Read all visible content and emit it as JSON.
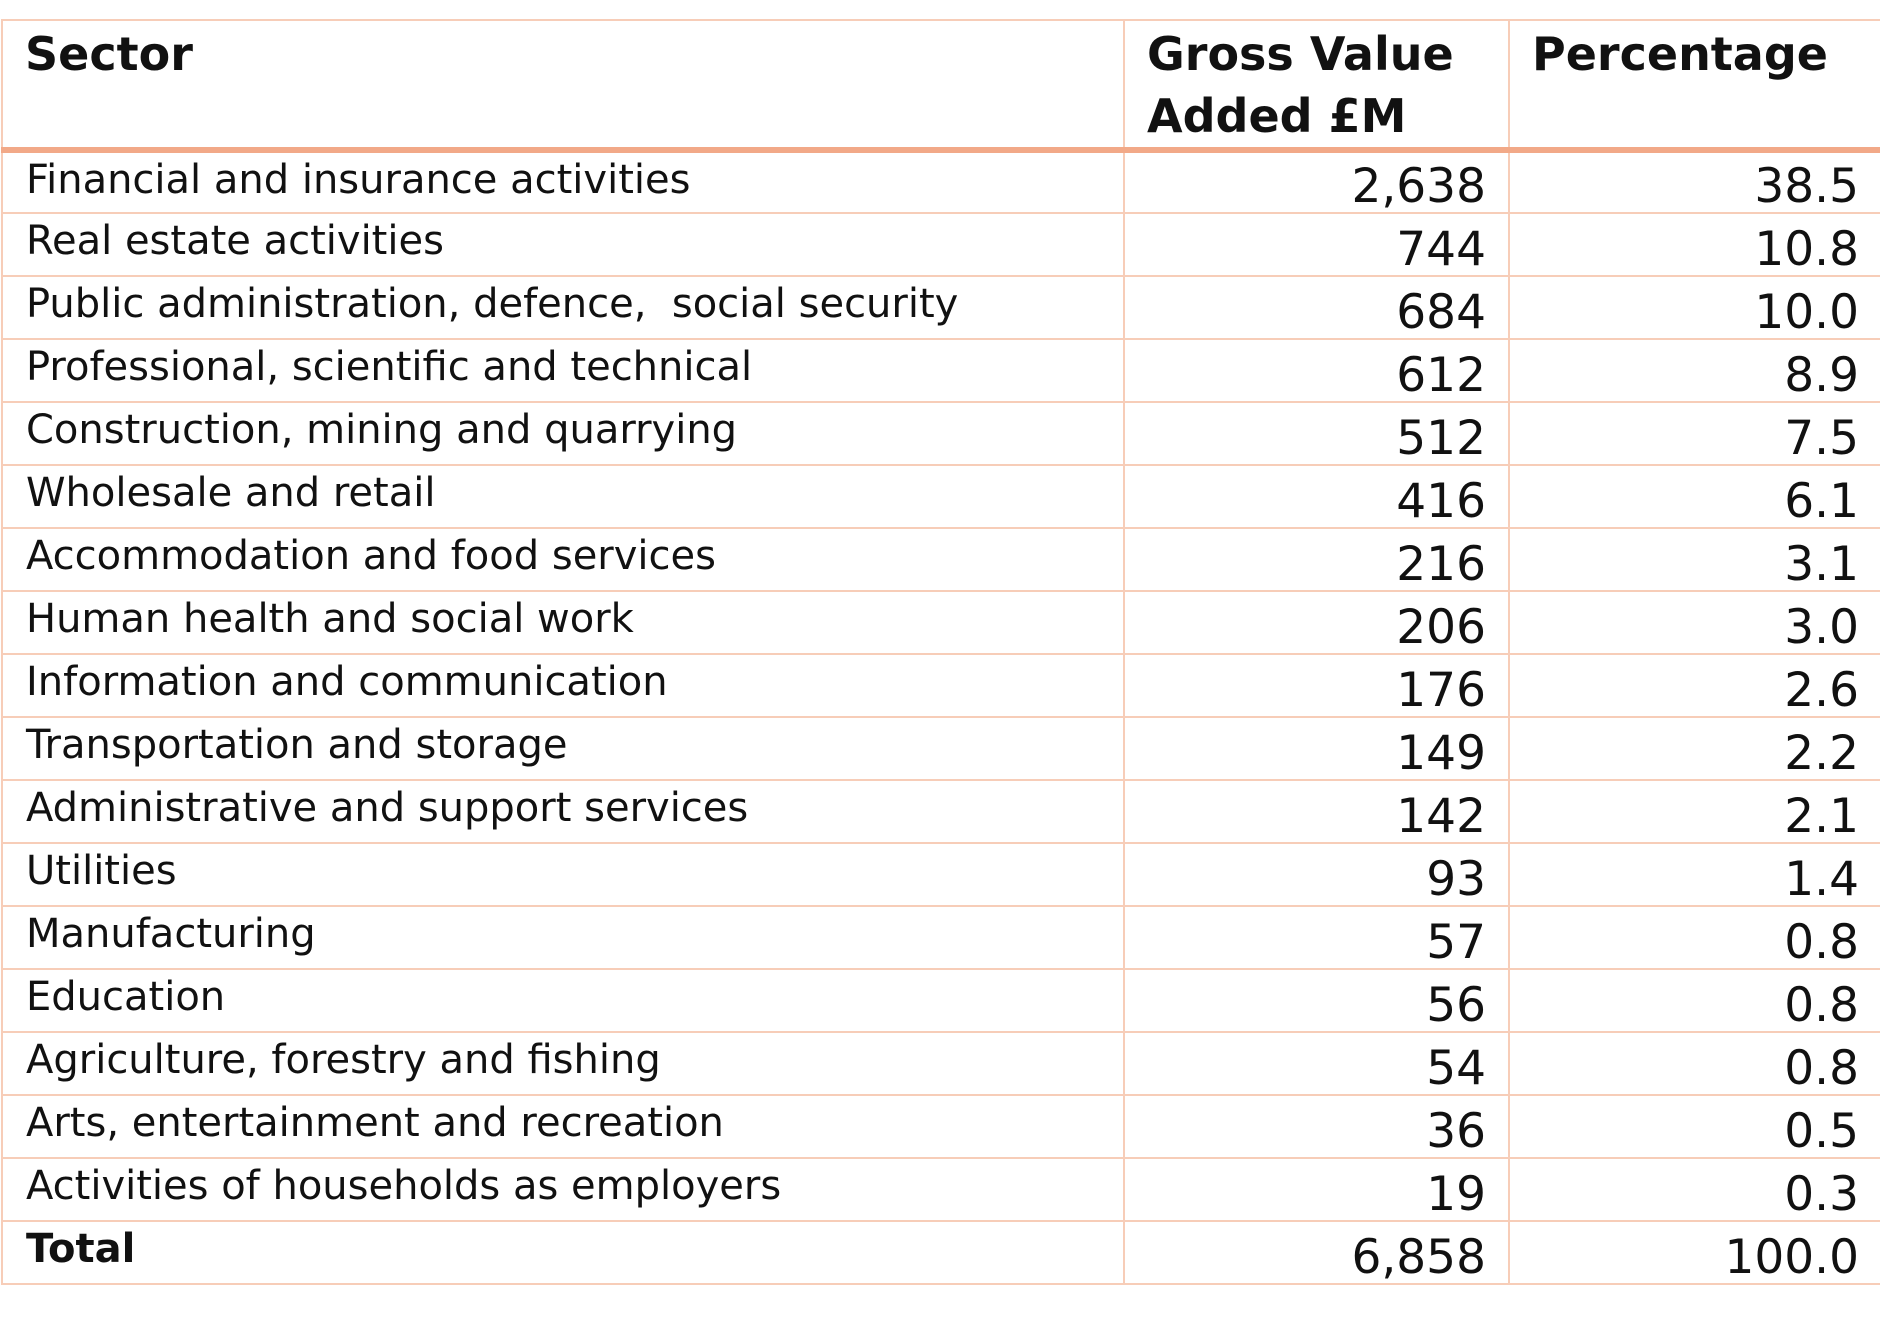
{
  "table": {
    "headers": {
      "sector": "Sector",
      "gva": "Gross Value Added £M",
      "percentage": "Percentage"
    },
    "rows": [
      {
        "sector": "Financial and insurance activities",
        "gva": "2,638",
        "percentage": "38.5"
      },
      {
        "sector": "Real estate activities",
        "gva": "744",
        "percentage": "10.8"
      },
      {
        "sector": "Public administration, defence,  social security",
        "gva": "684",
        "percentage": "10.0"
      },
      {
        "sector": "Professional, scientific and technical",
        "gva": "612",
        "percentage": "8.9"
      },
      {
        "sector": "Construction, mining and quarrying",
        "gva": "512",
        "percentage": "7.5"
      },
      {
        "sector": "Wholesale and retail",
        "gva": "416",
        "percentage": "6.1"
      },
      {
        "sector": "Accommodation and food services",
        "gva": "216",
        "percentage": "3.1"
      },
      {
        "sector": "Human health and social work",
        "gva": "206",
        "percentage": "3.0"
      },
      {
        "sector": "Information and communication",
        "gva": "176",
        "percentage": "2.6"
      },
      {
        "sector": "Transportation and storage",
        "gva": "149",
        "percentage": "2.2"
      },
      {
        "sector": "Administrative and support services",
        "gva": "142",
        "percentage": "2.1"
      },
      {
        "sector": "Utilities",
        "gva": "93",
        "percentage": "1.4"
      },
      {
        "sector": "Manufacturing",
        "gva": "57",
        "percentage": "0.8"
      },
      {
        "sector": "Education",
        "gva": "56",
        "percentage": "0.8"
      },
      {
        "sector": "Agriculture, forestry and fishing",
        "gva": "54",
        "percentage": "0.8"
      },
      {
        "sector": "Arts, entertainment and recreation",
        "gva": "36",
        "percentage": "0.5"
      },
      {
        "sector": "Activities of households as employers",
        "gva": "19",
        "percentage": "0.3"
      }
    ],
    "total": {
      "sector": "Total",
      "gva": "6,858",
      "percentage": "100.0"
    }
  },
  "colors": {
    "border": "#f7cdb8",
    "header_rule": "#f2a988",
    "text": "#111111"
  }
}
